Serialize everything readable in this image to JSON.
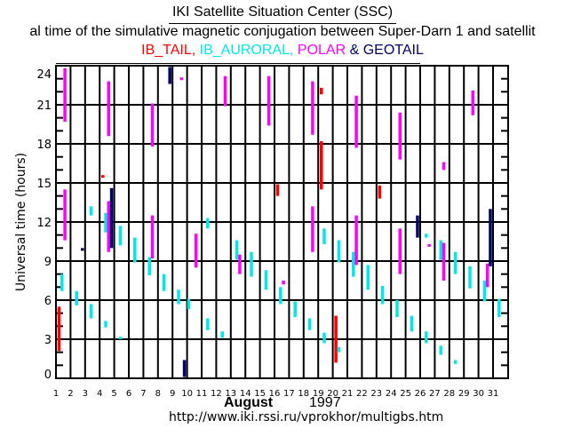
{
  "header": {
    "org_title": "IKI Satellite Situation Center (SSC)",
    "subtitle": "al time of the simulative magnetic conjugation between Super-Darn 1 and satellit",
    "series_line": [
      {
        "text": "IB_TAIL,",
        "color": "#ff0000"
      },
      {
        "text": " IB_AURORAL,",
        "color": "#00e8e8"
      },
      {
        "text": " POLAR",
        "color": "#ff00ff"
      },
      {
        "text": " & ",
        "color": "#000066"
      },
      {
        "text": "GEOTAIL",
        "color": "#000066"
      }
    ]
  },
  "footer": {
    "month": "August",
    "year": "1997",
    "url": "http://www.iki.rssi.ru/vprokhor/multigbs.htm"
  },
  "chart_data": {
    "type": "scatter",
    "title": "IKI Satellite Situation Center (SSC)",
    "xlabel": "August 1997",
    "ylabel": "Universal time (hours)",
    "xlim": [
      1,
      32
    ],
    "ylim": [
      0,
      24
    ],
    "x_tick_labels": [
      "1",
      "2",
      "3",
      "4",
      "5",
      "6",
      "7",
      "8",
      "9",
      "10",
      "11",
      "12",
      "13",
      "14",
      "15",
      "16",
      "17",
      "18",
      "19",
      "20",
      "21",
      "22",
      "23",
      "24",
      "25",
      "26",
      "27",
      "28",
      "29",
      "30",
      "31"
    ],
    "y_tick_labels": [
      "0",
      "3",
      "6",
      "9",
      "12",
      "15",
      "18",
      "21",
      "24"
    ],
    "y_ticks": [
      0,
      3,
      6,
      9,
      12,
      15,
      18,
      21,
      24
    ],
    "y_minor_step": 1,
    "grid": true,
    "legend": "top",
    "series": [
      {
        "name": "IB_TAIL",
        "color": "#ff0000",
        "segments": [
          {
            "day": 1.2,
            "from": 2.1,
            "to": 5.5
          },
          {
            "day": 4.2,
            "from": 15.4,
            "to": 15.6
          },
          {
            "day": 16.2,
            "from": 14.0,
            "to": 14.9
          },
          {
            "day": 19.2,
            "from": 21.8,
            "to": 22.3
          },
          {
            "day": 19.2,
            "from": 14.5,
            "to": 18.2
          },
          {
            "day": 20.2,
            "from": 1.2,
            "to": 4.8
          },
          {
            "day": 23.2,
            "from": 13.8,
            "to": 14.8
          }
        ]
      },
      {
        "name": "IB_AURORAL",
        "color": "#00e8e8",
        "segments": [
          {
            "day": 1.4,
            "from": 6.7,
            "to": 8.0
          },
          {
            "day": 2.4,
            "from": 5.6,
            "to": 6.7
          },
          {
            "day": 3.4,
            "from": 12.5,
            "to": 13.2
          },
          {
            "day": 3.4,
            "from": 4.6,
            "to": 5.7
          },
          {
            "day": 4.4,
            "from": 11.2,
            "to": 12.7
          },
          {
            "day": 4.4,
            "from": 3.9,
            "to": 4.4
          },
          {
            "day": 5.4,
            "from": 10.2,
            "to": 11.7
          },
          {
            "day": 5.4,
            "from": 3.0,
            "to": 3.2
          },
          {
            "day": 6.4,
            "from": 8.9,
            "to": 10.8
          },
          {
            "day": 7.4,
            "from": 7.9,
            "to": 9.3
          },
          {
            "day": 8.4,
            "from": 6.7,
            "to": 8.0
          },
          {
            "day": 9.4,
            "from": 5.7,
            "to": 6.8
          },
          {
            "day": 10.1,
            "from": 5.3,
            "to": 6.1
          },
          {
            "day": 11.4,
            "from": 11.5,
            "to": 12.3
          },
          {
            "day": 11.4,
            "from": 3.7,
            "to": 4.6
          },
          {
            "day": 12.4,
            "from": 3.1,
            "to": 3.6
          },
          {
            "day": 13.4,
            "from": 9.1,
            "to": 10.6
          },
          {
            "day": 14.4,
            "from": 7.8,
            "to": 9.7
          },
          {
            "day": 15.4,
            "from": 6.8,
            "to": 8.3
          },
          {
            "day": 16.4,
            "from": 5.7,
            "to": 7.0
          },
          {
            "day": 17.4,
            "from": 4.7,
            "to": 5.9
          },
          {
            "day": 18.4,
            "from": 3.7,
            "to": 4.6
          },
          {
            "day": 19.4,
            "from": 10.3,
            "to": 11.5
          },
          {
            "day": 19.4,
            "from": 2.7,
            "to": 3.5
          },
          {
            "day": 20.4,
            "from": 8.9,
            "to": 10.6
          },
          {
            "day": 20.4,
            "from": 2.0,
            "to": 2.4
          },
          {
            "day": 21.4,
            "from": 7.8,
            "to": 9.7
          },
          {
            "day": 22.4,
            "from": 6.8,
            "to": 8.7
          },
          {
            "day": 23.4,
            "from": 5.7,
            "to": 7.1
          },
          {
            "day": 24.4,
            "from": 4.7,
            "to": 6.0
          },
          {
            "day": 25.4,
            "from": 3.6,
            "to": 4.8
          },
          {
            "day": 26.4,
            "from": 10.8,
            "to": 11.1
          },
          {
            "day": 26.4,
            "from": 2.7,
            "to": 3.6
          },
          {
            "day": 27.4,
            "from": 9.1,
            "to": 10.6
          },
          {
            "day": 27.4,
            "from": 1.8,
            "to": 2.5
          },
          {
            "day": 28.4,
            "from": 8.0,
            "to": 9.7
          },
          {
            "day": 28.4,
            "from": 1.1,
            "to": 1.4
          },
          {
            "day": 29.4,
            "from": 6.9,
            "to": 8.6
          },
          {
            "day": 30.4,
            "from": 5.9,
            "to": 7.5
          },
          {
            "day": 31.4,
            "from": 4.7,
            "to": 6.1
          }
        ]
      },
      {
        "name": "POLAR",
        "color": "#ff00ff",
        "segments": [
          {
            "day": 1.6,
            "from": 19.7,
            "to": 23.8
          },
          {
            "day": 1.6,
            "from": 10.6,
            "to": 14.5
          },
          {
            "day": 4.6,
            "from": 18.6,
            "to": 22.8
          },
          {
            "day": 4.6,
            "from": 9.7,
            "to": 13.6
          },
          {
            "day": 7.6,
            "from": 17.8,
            "to": 21.1
          },
          {
            "day": 7.6,
            "from": 9.2,
            "to": 12.5
          },
          {
            "day": 9.6,
            "from": 22.9,
            "to": 23.1
          },
          {
            "day": 10.6,
            "from": 8.5,
            "to": 11.1
          },
          {
            "day": 12.6,
            "from": 20.9,
            "to": 23.2
          },
          {
            "day": 13.6,
            "from": 8.0,
            "to": 9.5
          },
          {
            "day": 15.6,
            "from": 19.4,
            "to": 23.2
          },
          {
            "day": 16.6,
            "from": 7.2,
            "to": 7.5
          },
          {
            "day": 18.6,
            "from": 18.7,
            "to": 22.8
          },
          {
            "day": 18.6,
            "from": 9.7,
            "to": 13.2
          },
          {
            "day": 21.6,
            "from": 17.7,
            "to": 21.7
          },
          {
            "day": 21.6,
            "from": 8.7,
            "to": 12.5
          },
          {
            "day": 24.6,
            "from": 16.8,
            "to": 20.4
          },
          {
            "day": 24.6,
            "from": 8.0,
            "to": 11.5
          },
          {
            "day": 26.6,
            "from": 10.1,
            "to": 10.3
          },
          {
            "day": 27.6,
            "from": 16.0,
            "to": 16.6
          },
          {
            "day": 27.6,
            "from": 7.5,
            "to": 10.4
          },
          {
            "day": 29.6,
            "from": 20.2,
            "to": 22.1
          },
          {
            "day": 30.6,
            "from": 7.0,
            "to": 8.8
          }
        ]
      },
      {
        "name": "GEOTAIL",
        "color": "#000066",
        "segments": [
          {
            "day": 2.8,
            "from": 9.8,
            "to": 10.0
          },
          {
            "day": 4.8,
            "from": 10.0,
            "to": 14.6
          },
          {
            "day": 8.8,
            "from": 22.6,
            "to": 23.9
          },
          {
            "day": 9.8,
            "from": 0.1,
            "to": 1.4
          },
          {
            "day": 25.8,
            "from": 10.8,
            "to": 12.5
          },
          {
            "day": 30.8,
            "from": 8.6,
            "to": 13.0
          }
        ]
      }
    ]
  }
}
